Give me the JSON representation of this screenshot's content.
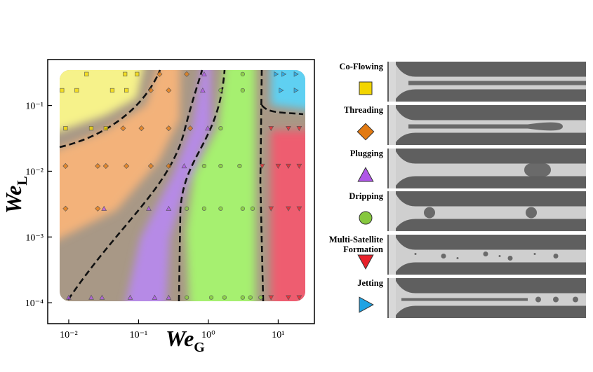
{
  "chart_data": {
    "type": "scatter",
    "xlabel": {
      "base": "We",
      "sub": "G"
    },
    "ylabel": {
      "base": "We",
      "sub": "L"
    },
    "log_x": true,
    "log_y": true,
    "xlim": [
      0.005,
      33
    ],
    "ylim": [
      4.8e-05,
      0.5
    ],
    "xticks": [
      {
        "value": 0.01,
        "label": "10⁻²"
      },
      {
        "value": 0.1,
        "label": "10⁻¹"
      },
      {
        "value": 1,
        "label": "10⁰"
      },
      {
        "value": 10,
        "label": "10¹"
      }
    ],
    "yticks": [
      {
        "value": 0.0001,
        "label": "10⁻⁴"
      },
      {
        "value": 0.001,
        "label": "10⁻³"
      },
      {
        "value": 0.01,
        "label": "10⁻²"
      },
      {
        "value": 0.1,
        "label": "10⁻¹"
      }
    ],
    "series": [
      {
        "name": "Co-Flowing",
        "color": "#f2d500",
        "marker": "square",
        "x": [
          0.018,
          0.064,
          0.095,
          0.008,
          0.013,
          0.042,
          0.067,
          0.009,
          0.021,
          0.034
        ],
        "y": [
          0.3,
          0.3,
          0.3,
          0.17,
          0.17,
          0.17,
          0.17,
          0.045,
          0.045,
          0.045
        ]
      },
      {
        "name": "Threading",
        "color": "#e27a12",
        "marker": "diamond",
        "x": [
          0.2,
          0.49,
          0.15,
          0.27,
          0.06,
          0.11,
          0.27,
          0.55,
          0.009,
          0.026,
          0.034,
          0.067,
          0.15,
          0.27,
          0.009,
          0.026
        ],
        "y": [
          0.3,
          0.3,
          0.17,
          0.17,
          0.045,
          0.045,
          0.045,
          0.045,
          0.012,
          0.012,
          0.012,
          0.012,
          0.012,
          0.012,
          0.0027,
          0.0027
        ]
      },
      {
        "name": "Plugging",
        "color": "#b057e8",
        "marker": "triangle-up",
        "x": [
          0.87,
          0.83,
          0.98,
          0.45,
          0.032,
          0.14,
          0.27,
          0.01,
          0.021,
          0.03,
          0.076,
          0.17,
          0.27
        ],
        "y": [
          0.3,
          0.17,
          0.045,
          0.012,
          0.0027,
          0.0027,
          0.0027,
          0.00012,
          0.00012,
          0.00012,
          0.00012,
          0.00012,
          0.00012
        ]
      },
      {
        "name": "Dripping",
        "color": "#86c83e",
        "marker": "circle",
        "x": [
          3.1,
          1.5,
          3.1,
          1.5,
          0.87,
          1.5,
          2.8,
          0.49,
          0.87,
          1.5,
          3.1,
          4.3,
          0.49,
          1.1,
          1.7,
          3.1,
          4,
          5.6
        ],
        "y": [
          0.3,
          0.17,
          0.17,
          0.045,
          0.012,
          0.012,
          0.012,
          0.0027,
          0.0027,
          0.0027,
          0.0027,
          0.0027,
          0.00012,
          0.00012,
          0.00012,
          0.00012,
          0.00012,
          0.00012
        ]
      },
      {
        "name": "Multi-Satellite Formation",
        "color": "#e8202a",
        "marker": "triangle-down",
        "x": [
          7.9,
          14,
          20,
          5.9,
          10,
          14,
          20,
          7.9,
          14,
          20,
          7.9,
          14,
          20
        ],
        "y": [
          0.045,
          0.045,
          0.045,
          0.012,
          0.012,
          0.012,
          0.012,
          0.0027,
          0.0027,
          0.0027,
          0.00012,
          0.00012,
          0.00012
        ]
      },
      {
        "name": "Jetting",
        "color": "#1fa3e3",
        "marker": "triangle-right",
        "x": [
          9.3,
          12,
          18,
          11,
          18
        ],
        "y": [
          0.3,
          0.3,
          0.3,
          0.17,
          0.17
        ]
      }
    ]
  }
}
